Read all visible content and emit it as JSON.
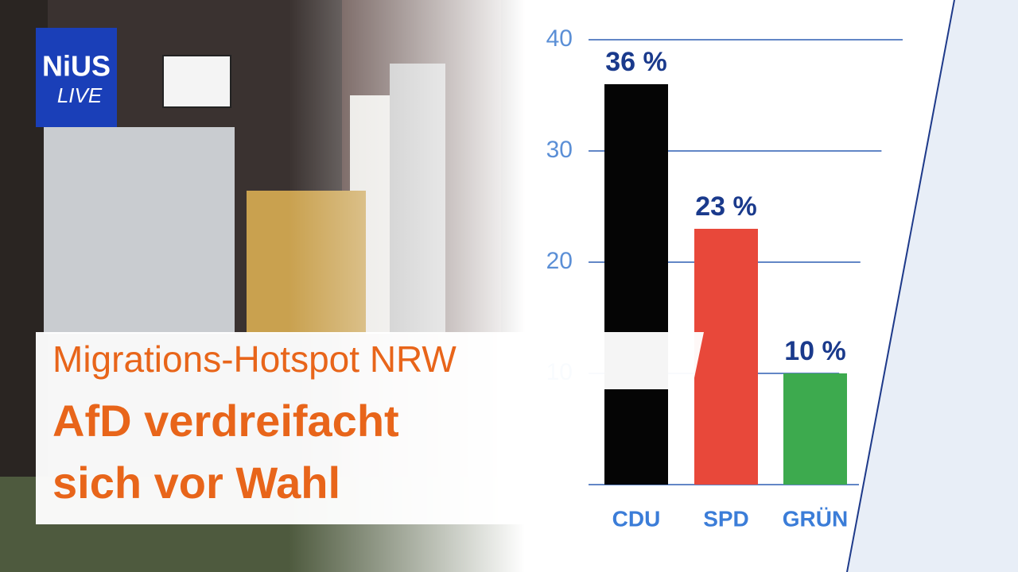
{
  "logo": {
    "name": "NiUS",
    "tag": "LIVE"
  },
  "headline": {
    "kicker": "Migrations-Hotspot NRW",
    "lines": [
      "AfD verdreifacht",
      "sich vor Wahl"
    ]
  },
  "chart_data": {
    "type": "bar",
    "categories": [
      "CDU",
      "SPD",
      "GRÜN"
    ],
    "values": [
      36,
      23,
      10
    ],
    "value_labels": [
      "36 %",
      "23 %",
      "10 %"
    ],
    "colors": [
      "#050505",
      "#e8483a",
      "#3daa4e"
    ],
    "ylim": [
      0,
      40
    ],
    "yticks": [
      10,
      20,
      30,
      40
    ],
    "grid": true
  }
}
